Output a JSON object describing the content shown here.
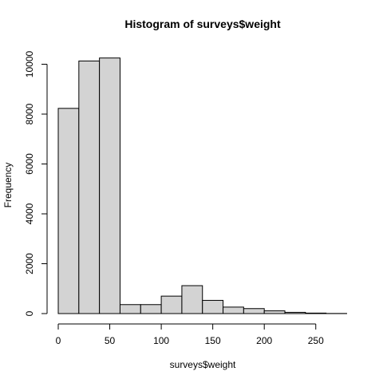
{
  "chart_data": {
    "type": "bar",
    "title": "Histogram of surveys$weight",
    "xlabel": "surveys$weight",
    "ylabel": "Frequency",
    "bin_width": 20,
    "bins": [
      {
        "start": 0,
        "end": 20,
        "count": 8230
      },
      {
        "start": 20,
        "end": 40,
        "count": 10130
      },
      {
        "start": 40,
        "end": 60,
        "count": 10250
      },
      {
        "start": 60,
        "end": 80,
        "count": 360
      },
      {
        "start": 80,
        "end": 100,
        "count": 360
      },
      {
        "start": 100,
        "end": 120,
        "count": 700
      },
      {
        "start": 120,
        "end": 140,
        "count": 1120
      },
      {
        "start": 140,
        "end": 160,
        "count": 530
      },
      {
        "start": 160,
        "end": 180,
        "count": 260
      },
      {
        "start": 180,
        "end": 200,
        "count": 200
      },
      {
        "start": 200,
        "end": 220,
        "count": 110
      },
      {
        "start": 220,
        "end": 240,
        "count": 50
      },
      {
        "start": 240,
        "end": 260,
        "count": 20
      },
      {
        "start": 260,
        "end": 280,
        "count": 5
      }
    ],
    "xlim": [
      0,
      280
    ],
    "ylim": [
      0,
      10250
    ],
    "x_ticks": [
      0,
      50,
      100,
      150,
      200,
      250
    ],
    "y_ticks": [
      0,
      2000,
      4000,
      6000,
      8000,
      10000
    ],
    "grid": false,
    "bar_color": "#d3d3d3",
    "edge_color": "#000000"
  }
}
